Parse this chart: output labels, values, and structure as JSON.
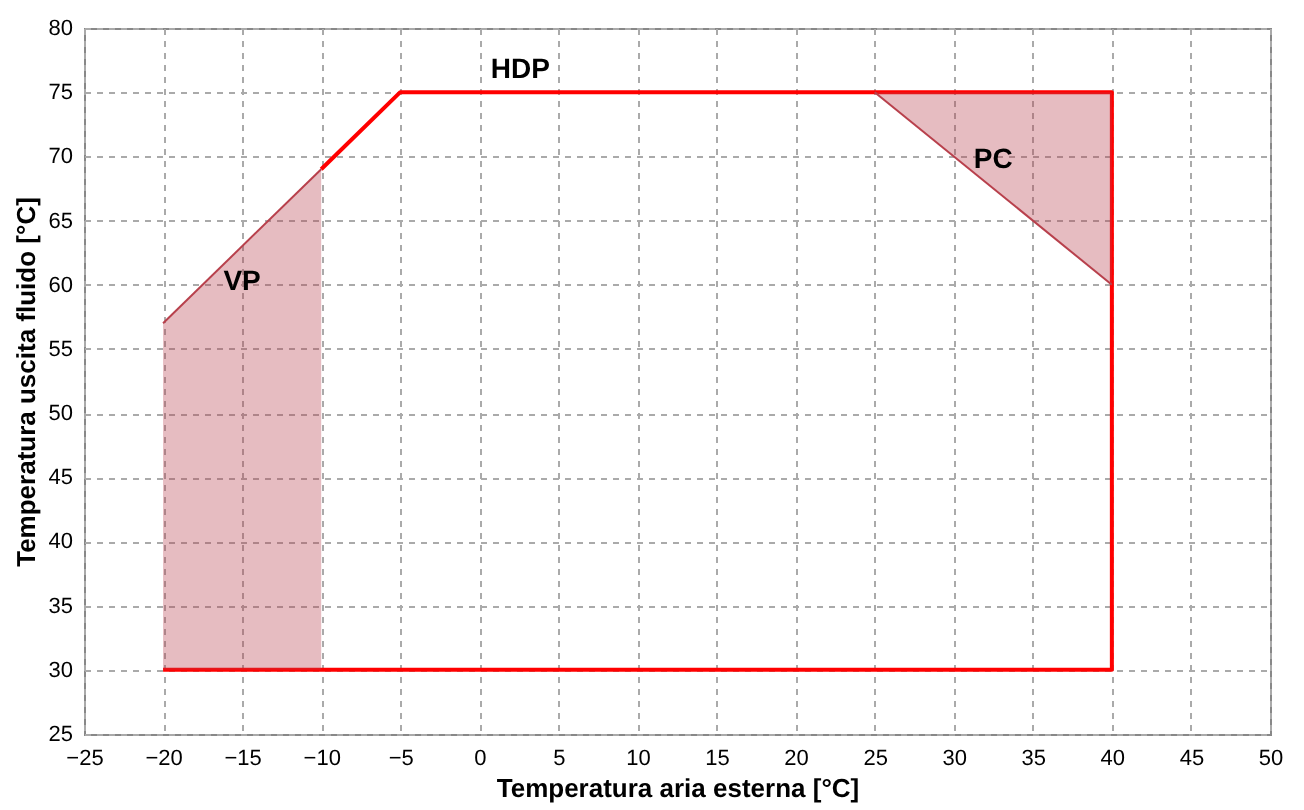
{
  "chart_data": {
    "type": "line",
    "xlabel": "Temperatura aria esterna [°C]",
    "ylabel": "Temperatura uscita fluido [°C]",
    "xlim": [
      -25,
      50
    ],
    "xticks": [
      -25,
      -20,
      -15,
      -10,
      -5,
      0,
      5,
      10,
      15,
      20,
      25,
      30,
      35,
      40,
      45,
      50
    ],
    "ylim": [
      25,
      80
    ],
    "yticks": [
      25,
      30,
      35,
      40,
      45,
      50,
      55,
      60,
      65,
      70,
      75,
      80
    ],
    "grid": true,
    "legend": false,
    "series": [
      {
        "name": "HDP",
        "color": "#ff0000",
        "x": [
          -10,
          -5,
          40,
          40,
          -20
        ],
        "values": [
          69,
          75,
          75,
          30,
          30
        ]
      },
      {
        "name": "VP",
        "color": "#b8404c",
        "x": [
          -20,
          -10
        ],
        "values": [
          57,
          69
        ],
        "lower": [
          30,
          30
        ],
        "upper": [
          57,
          69
        ]
      },
      {
        "name": "PC",
        "color": "#b8404c",
        "x": [
          25,
          40
        ],
        "values": [
          75,
          60
        ],
        "lower": [
          75,
          60
        ],
        "upper": [
          75,
          75
        ]
      }
    ]
  }
}
